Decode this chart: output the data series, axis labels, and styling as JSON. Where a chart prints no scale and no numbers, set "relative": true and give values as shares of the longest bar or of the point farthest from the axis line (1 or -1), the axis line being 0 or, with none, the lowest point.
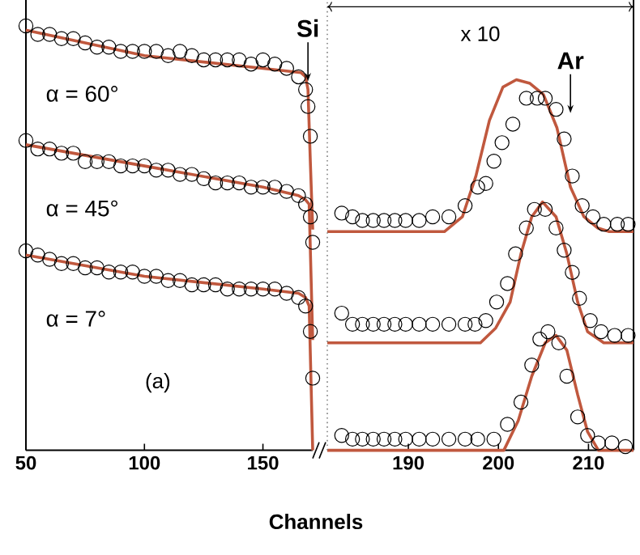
{
  "chart_data": [
    {
      "type": "scatter",
      "relative": true,
      "xlim": [
        50,
        171
      ],
      "xticks": [
        50,
        100,
        150
      ],
      "xlabel": "Channels",
      "tick_labels": "x",
      "marker": "circle",
      "annotations": [
        {
          "text": "Si",
          "x": 169,
          "y": 0.87
        },
        "(a)"
      ],
      "series": [
        {
          "name": "α = 60°",
          "color": "#000000",
          "x": [
            50,
            55,
            60,
            65,
            70,
            75,
            80,
            85,
            90,
            95,
            100,
            105,
            110,
            115,
            120,
            125,
            130,
            135,
            140,
            145,
            150,
            155,
            160,
            165,
            168,
            169,
            170
          ],
          "values": [
            1.0,
            0.98,
            0.98,
            0.97,
            0.97,
            0.96,
            0.95,
            0.95,
            0.94,
            0.94,
            0.94,
            0.94,
            0.93,
            0.94,
            0.93,
            0.92,
            0.92,
            0.92,
            0.92,
            0.91,
            0.92,
            0.91,
            0.9,
            0.88,
            0.85,
            0.81,
            0.74
          ]
        },
        {
          "name": "α = 45°",
          "color": "#000000",
          "x": [
            50,
            55,
            60,
            65,
            70,
            75,
            80,
            85,
            90,
            95,
            100,
            105,
            110,
            115,
            120,
            125,
            130,
            135,
            140,
            145,
            150,
            155,
            160,
            165,
            168,
            170,
            171
          ],
          "values": [
            0.73,
            0.71,
            0.71,
            0.7,
            0.7,
            0.68,
            0.68,
            0.68,
            0.67,
            0.67,
            0.67,
            0.66,
            0.66,
            0.65,
            0.65,
            0.64,
            0.63,
            0.63,
            0.63,
            0.62,
            0.62,
            0.62,
            0.61,
            0.6,
            0.58,
            0.55,
            0.49
          ]
        },
        {
          "name": "α = 7°",
          "color": "#000000",
          "x": [
            50,
            55,
            60,
            65,
            70,
            75,
            80,
            85,
            90,
            95,
            100,
            105,
            110,
            115,
            120,
            125,
            130,
            135,
            140,
            145,
            150,
            155,
            160,
            165,
            168,
            170,
            171
          ],
          "values": [
            0.47,
            0.46,
            0.45,
            0.44,
            0.44,
            0.43,
            0.43,
            0.42,
            0.42,
            0.42,
            0.41,
            0.41,
            0.4,
            0.4,
            0.39,
            0.39,
            0.39,
            0.38,
            0.38,
            0.38,
            0.38,
            0.38,
            0.37,
            0.36,
            0.34,
            0.28,
            0.17
          ]
        },
        {
          "type": "line",
          "marker": "none",
          "color": "#c0583e",
          "x": [
            50,
            100,
            150,
            166,
            168,
            169,
            170,
            171
          ],
          "values": [
            0.99,
            0.93,
            0.9,
            0.89,
            0.88,
            0.85,
            0.68,
            0.52
          ]
        },
        {
          "type": "line",
          "marker": "none",
          "color": "#c0583e",
          "x": [
            50,
            100,
            150,
            165,
            168,
            169.5,
            171
          ],
          "values": [
            0.72,
            0.67,
            0.62,
            0.6,
            0.59,
            0.58,
            0.26
          ]
        },
        {
          "type": "line",
          "marker": "none",
          "color": "#c0583e",
          "x": [
            50,
            100,
            150,
            165,
            168,
            169.5,
            171
          ],
          "values": [
            0.46,
            0.41,
            0.38,
            0.37,
            0.36,
            0.34,
            0
          ]
        }
      ]
    },
    {
      "type": "scatter",
      "relative": true,
      "xlim": [
        181,
        215
      ],
      "xticks": [
        190,
        200,
        210
      ],
      "tick_labels": "x",
      "marker": "circle",
      "annotations": [
        {
          "text": "Ar",
          "x": 208,
          "y": 0.91
        },
        "x 10"
      ],
      "series": [
        {
          "color": "#000000",
          "x": [
            182.6,
            183.8,
            184.9,
            186.1,
            187.3,
            188.5,
            189.7,
            191.2,
            192.7,
            194.5,
            196.3,
            197.7,
            198.6,
            199.5,
            200.4,
            201.6,
            203.1,
            204.3,
            205.2,
            206.4,
            207.3,
            208.2,
            209.3,
            210.5,
            211.7,
            213.2,
            214.4
          ],
          "values": [
            0.64,
            0.63,
            0.62,
            0.62,
            0.62,
            0.62,
            0.62,
            0.62,
            0.63,
            0.63,
            0.66,
            0.71,
            0.72,
            0.78,
            0.83,
            0.88,
            0.95,
            0.95,
            0.95,
            0.92,
            0.84,
            0.74,
            0.66,
            0.63,
            0.61,
            0.61,
            0.61
          ]
        },
        {
          "color": "#000000",
          "x": [
            182.6,
            183.8,
            184.9,
            186.1,
            187.3,
            188.5,
            189.7,
            191.2,
            192.7,
            194.5,
            196.3,
            197.4,
            198.6,
            199.8,
            201.0,
            201.9,
            203.1,
            204.0,
            205.2,
            206.4,
            207.3,
            208.2,
            209.0,
            210.2,
            211.4,
            212.9,
            214.4
          ],
          "values": [
            0.37,
            0.34,
            0.34,
            0.34,
            0.34,
            0.34,
            0.34,
            0.34,
            0.34,
            0.34,
            0.34,
            0.34,
            0.35,
            0.4,
            0.45,
            0.53,
            0.6,
            0.65,
            0.65,
            0.6,
            0.54,
            0.48,
            0.41,
            0.35,
            0.32,
            0.31,
            0.31
          ]
        },
        {
          "color": "#000000",
          "x": [
            182.6,
            183.8,
            184.9,
            186.1,
            187.3,
            188.5,
            189.7,
            191.2,
            192.7,
            194.5,
            196.3,
            197.7,
            199.5,
            201.0,
            202.5,
            203.7,
            204.6,
            205.5,
            206.7,
            207.6,
            208.8,
            209.9,
            211.1,
            212.6,
            214.1
          ],
          "values": [
            0.04,
            0.03,
            0.03,
            0.03,
            0.03,
            0.03,
            0.03,
            0.03,
            0.03,
            0.03,
            0.03,
            0.03,
            0.03,
            0.07,
            0.13,
            0.23,
            0.3,
            0.32,
            0.29,
            0.2,
            0.09,
            0.04,
            0.02,
            0.02,
            0.01
          ]
        },
        {
          "type": "line",
          "marker": "none",
          "color": "#c0583e",
          "x": [
            181,
            194,
            196,
            197.5,
            199,
            200.5,
            202,
            203.5,
            205,
            206.5,
            208,
            209.5,
            211,
            212.3,
            215
          ],
          "values": [
            0.59,
            0.59,
            0.63,
            0.74,
            0.89,
            0.98,
            1.0,
            0.99,
            0.96,
            0.87,
            0.71,
            0.63,
            0.6,
            0.59,
            0.59
          ]
        },
        {
          "type": "line",
          "marker": "none",
          "color": "#c0583e",
          "x": [
            181,
            198,
            199.7,
            201.3,
            202.5,
            203.7,
            204.9,
            206.4,
            207.6,
            208.8,
            209.9,
            211.7,
            215
          ],
          "values": [
            0.29,
            0.29,
            0.33,
            0.4,
            0.53,
            0.63,
            0.67,
            0.63,
            0.53,
            0.4,
            0.32,
            0.29,
            0.29
          ]
        },
        {
          "type": "line",
          "marker": "none",
          "color": "#c0583e",
          "x": [
            181,
            200.6,
            202.2,
            203.7,
            205.2,
            206.4,
            207.6,
            208.8,
            209.9,
            211.1,
            215
          ],
          "values": [
            0,
            0,
            0.08,
            0.2,
            0.29,
            0.31,
            0.27,
            0.15,
            0.05,
            0,
            0
          ]
        }
      ]
    }
  ]
}
